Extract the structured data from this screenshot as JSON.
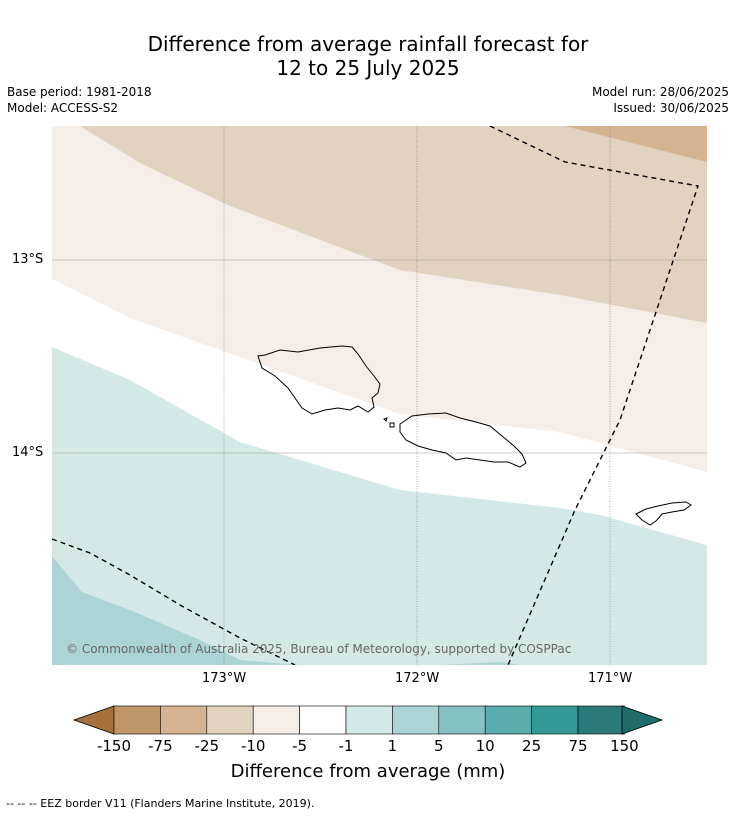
{
  "title": {
    "line1": "Difference from average rainfall forecast for",
    "line2": "12 to 25 July 2025"
  },
  "info": {
    "base_period": "Base period: 1981-2018",
    "model": "Model: ACCESS-S2",
    "model_run": "Model run: 28/06/2025",
    "issued": "Issued: 30/06/2025"
  },
  "map": {
    "lat_labels": [
      "13°S",
      "14°S"
    ],
    "lon_labels": [
      "173°W",
      "172°W",
      "171°W"
    ],
    "copyright": "© Commonwealth of Australia 2025, Bureau of Meteorology, supported by COSPPac",
    "colors": {
      "lt_-75": "#c0956a",
      "-25_-10": "#e2d2c0",
      "-5_-1": "#f4ede8",
      "-1_1": "#ffffff",
      "1_5": "#d4e9e7",
      "5_10": "#add4d4"
    }
  },
  "colorbar": {
    "title": "Difference from average (mm)",
    "labels": [
      "-150",
      "-75",
      "-25",
      "-10",
      "-5",
      "-1",
      "1",
      "5",
      "10",
      "25",
      "75",
      "150"
    ],
    "colors": [
      "#a8703a",
      "#c0956a",
      "#d4b391",
      "#e2d2c0",
      "#f4ede8",
      "#ffffff",
      "#d4e9e7",
      "#add4d4",
      "#84c1c1",
      "#5aadad",
      "#339a97",
      "#2a7b79",
      "#1f6c6a"
    ]
  },
  "footer": "-- -- -- EEZ border V11 (Flanders Marine Institute, 2019)."
}
